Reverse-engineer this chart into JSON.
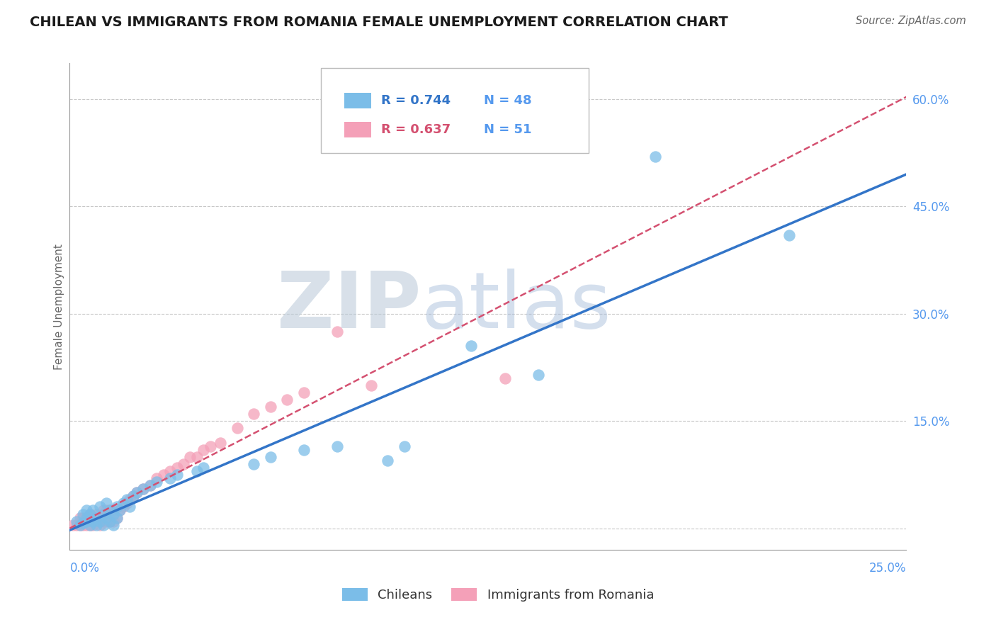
{
  "title": "CHILEAN VS IMMIGRANTS FROM ROMANIA FEMALE UNEMPLOYMENT CORRELATION CHART",
  "source": "Source: ZipAtlas.com",
  "xmin": 0.0,
  "xmax": 0.25,
  "ymin": -0.03,
  "ymax": 0.65,
  "R_blue": 0.744,
  "N_blue": 48,
  "R_pink": 0.637,
  "N_pink": 51,
  "blue_color": "#7bbde8",
  "pink_color": "#f4a0b8",
  "blue_line_color": "#3375c8",
  "pink_line_color": "#d45070",
  "watermark_blue": "#c5d8ef",
  "watermark_gray": "#b0b8c8",
  "grid_color": "#c8c8c8",
  "title_color": "#1a1a1a",
  "label_color": "#5599ee",
  "ylabel_label": "Female Unemployment",
  "ylabel_ticks": [
    0.0,
    0.15,
    0.3,
    0.45,
    0.6
  ],
  "ylabel_tick_labels": [
    "",
    "15.0%",
    "30.0%",
    "45.0%",
    "60.0%"
  ],
  "blue_scatter_x": [
    0.002,
    0.003,
    0.004,
    0.004,
    0.005,
    0.005,
    0.005,
    0.006,
    0.006,
    0.007,
    0.007,
    0.008,
    0.008,
    0.009,
    0.009,
    0.01,
    0.01,
    0.011,
    0.011,
    0.012,
    0.012,
    0.013,
    0.013,
    0.014,
    0.014,
    0.015,
    0.016,
    0.017,
    0.018,
    0.019,
    0.02,
    0.022,
    0.024,
    0.026,
    0.03,
    0.032,
    0.038,
    0.04,
    0.055,
    0.06,
    0.07,
    0.08,
    0.095,
    0.1,
    0.12,
    0.14,
    0.175,
    0.215
  ],
  "blue_scatter_y": [
    0.01,
    0.005,
    0.008,
    0.02,
    0.01,
    0.015,
    0.025,
    0.005,
    0.02,
    0.01,
    0.025,
    0.005,
    0.015,
    0.01,
    0.03,
    0.005,
    0.02,
    0.015,
    0.035,
    0.01,
    0.025,
    0.005,
    0.02,
    0.015,
    0.03,
    0.025,
    0.035,
    0.04,
    0.03,
    0.045,
    0.05,
    0.055,
    0.06,
    0.065,
    0.07,
    0.075,
    0.08,
    0.085,
    0.09,
    0.1,
    0.11,
    0.115,
    0.095,
    0.115,
    0.255,
    0.215,
    0.52,
    0.41
  ],
  "pink_scatter_x": [
    0.001,
    0.002,
    0.003,
    0.003,
    0.004,
    0.004,
    0.005,
    0.005,
    0.006,
    0.006,
    0.007,
    0.007,
    0.008,
    0.008,
    0.009,
    0.009,
    0.01,
    0.01,
    0.011,
    0.011,
    0.012,
    0.012,
    0.013,
    0.013,
    0.014,
    0.015,
    0.016,
    0.017,
    0.018,
    0.019,
    0.02,
    0.022,
    0.024,
    0.026,
    0.028,
    0.03,
    0.032,
    0.034,
    0.036,
    0.038,
    0.04,
    0.042,
    0.045,
    0.05,
    0.055,
    0.06,
    0.065,
    0.07,
    0.08,
    0.09,
    0.13
  ],
  "pink_scatter_y": [
    0.005,
    0.005,
    0.005,
    0.015,
    0.005,
    0.015,
    0.005,
    0.015,
    0.005,
    0.02,
    0.005,
    0.015,
    0.01,
    0.02,
    0.005,
    0.015,
    0.01,
    0.025,
    0.01,
    0.025,
    0.01,
    0.025,
    0.01,
    0.025,
    0.015,
    0.025,
    0.03,
    0.035,
    0.04,
    0.045,
    0.05,
    0.055,
    0.06,
    0.07,
    0.075,
    0.08,
    0.085,
    0.09,
    0.1,
    0.1,
    0.11,
    0.115,
    0.12,
    0.14,
    0.16,
    0.17,
    0.18,
    0.19,
    0.275,
    0.2,
    0.21
  ]
}
